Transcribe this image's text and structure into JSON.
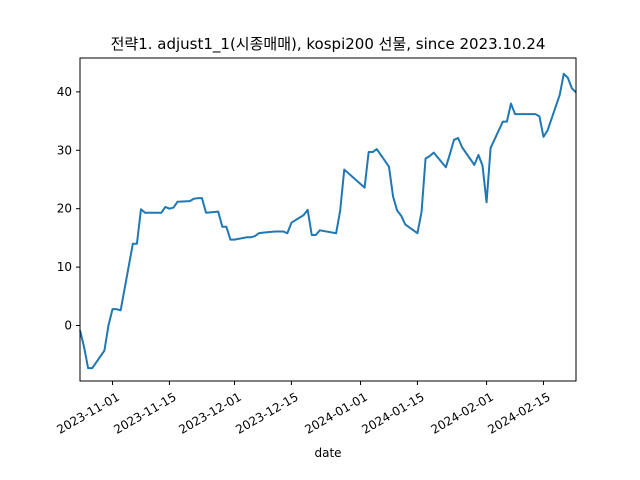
{
  "chart_data": {
    "type": "line",
    "title": "전략1. adjust1_1(시종매매), kospi200 선물, since 2023.10.24",
    "xlabel": "date",
    "ylabel": "",
    "xlim": [
      "2023-10-24",
      "2024-02-23"
    ],
    "ylim": [
      -9.5,
      45.8
    ],
    "grid": false,
    "x_ticks": [
      {
        "date": "2023-11-01",
        "label": "2023-11-01"
      },
      {
        "date": "2023-11-15",
        "label": "2023-11-15"
      },
      {
        "date": "2023-12-01",
        "label": "2023-12-01"
      },
      {
        "date": "2023-12-15",
        "label": "2023-12-15"
      },
      {
        "date": "2024-01-01",
        "label": "2024-01-01"
      },
      {
        "date": "2024-01-15",
        "label": "2024-01-15"
      },
      {
        "date": "2024-02-01",
        "label": "2024-02-01"
      },
      {
        "date": "2024-02-15",
        "label": "2024-02-15"
      }
    ],
    "y_ticks": [
      0,
      10,
      20,
      30,
      40
    ],
    "series": [
      {
        "name": "",
        "color": "#1f77b4",
        "x": [
          "2023-10-24",
          "2023-10-25",
          "2023-10-26",
          "2023-10-27",
          "2023-10-30",
          "2023-10-31",
          "2023-11-01",
          "2023-11-02",
          "2023-11-03",
          "2023-11-06",
          "2023-11-07",
          "2023-11-08",
          "2023-11-09",
          "2023-11-10",
          "2023-11-13",
          "2023-11-14",
          "2023-11-15",
          "2023-11-16",
          "2023-11-17",
          "2023-11-20",
          "2023-11-21",
          "2023-11-22",
          "2023-11-23",
          "2023-11-24",
          "2023-11-27",
          "2023-11-28",
          "2023-11-29",
          "2023-11-30",
          "2023-12-01",
          "2023-12-04",
          "2023-12-05",
          "2023-12-06",
          "2023-12-07",
          "2023-12-08",
          "2023-12-11",
          "2023-12-12",
          "2023-12-13",
          "2023-12-14",
          "2023-12-15",
          "2023-12-18",
          "2023-12-19",
          "2023-12-20",
          "2023-12-21",
          "2023-12-22",
          "2023-12-26",
          "2023-12-27",
          "2023-12-28",
          "2024-01-02",
          "2024-01-03",
          "2024-01-04",
          "2024-01-05",
          "2024-01-08",
          "2024-01-09",
          "2024-01-10",
          "2024-01-11",
          "2024-01-12",
          "2024-01-15",
          "2024-01-16",
          "2024-01-17",
          "2024-01-18",
          "2024-01-19",
          "2024-01-22",
          "2024-01-23",
          "2024-01-24",
          "2024-01-25",
          "2024-01-26",
          "2024-01-29",
          "2024-01-30",
          "2024-01-31",
          "2024-02-01",
          "2024-02-02",
          "2024-02-05",
          "2024-02-06",
          "2024-02-07",
          "2024-02-08",
          "2024-02-13",
          "2024-02-14",
          "2024-02-15",
          "2024-02-16",
          "2024-02-19",
          "2024-02-20",
          "2024-02-21",
          "2024-02-22",
          "2024-02-23"
        ],
        "y": [
          -0.8,
          -3.7,
          -7.3,
          -7.3,
          -4.3,
          0.0,
          2.8,
          2.8,
          2.6,
          14.0,
          14.0,
          19.9,
          19.3,
          19.3,
          19.3,
          20.3,
          20.0,
          20.2,
          21.2,
          21.3,
          21.7,
          21.8,
          21.8,
          19.3,
          19.5,
          16.9,
          16.9,
          14.7,
          14.7,
          15.1,
          15.1,
          15.3,
          15.8,
          15.9,
          16.1,
          16.1,
          16.1,
          15.8,
          17.6,
          18.9,
          19.8,
          15.5,
          15.5,
          16.3,
          15.8,
          19.7,
          26.7,
          23.6,
          29.7,
          29.7,
          30.2,
          27.2,
          22.1,
          19.7,
          18.8,
          17.3,
          15.8,
          19.4,
          28.6,
          29.0,
          29.6,
          27.1,
          29.4,
          31.8,
          32.1,
          30.5,
          27.5,
          29.2,
          27.4,
          21.1,
          30.4,
          34.9,
          34.9,
          38.0,
          36.2,
          36.2,
          35.8,
          32.3,
          33.4,
          39.5,
          43.1,
          42.4,
          40.6,
          39.9
        ]
      }
    ]
  }
}
